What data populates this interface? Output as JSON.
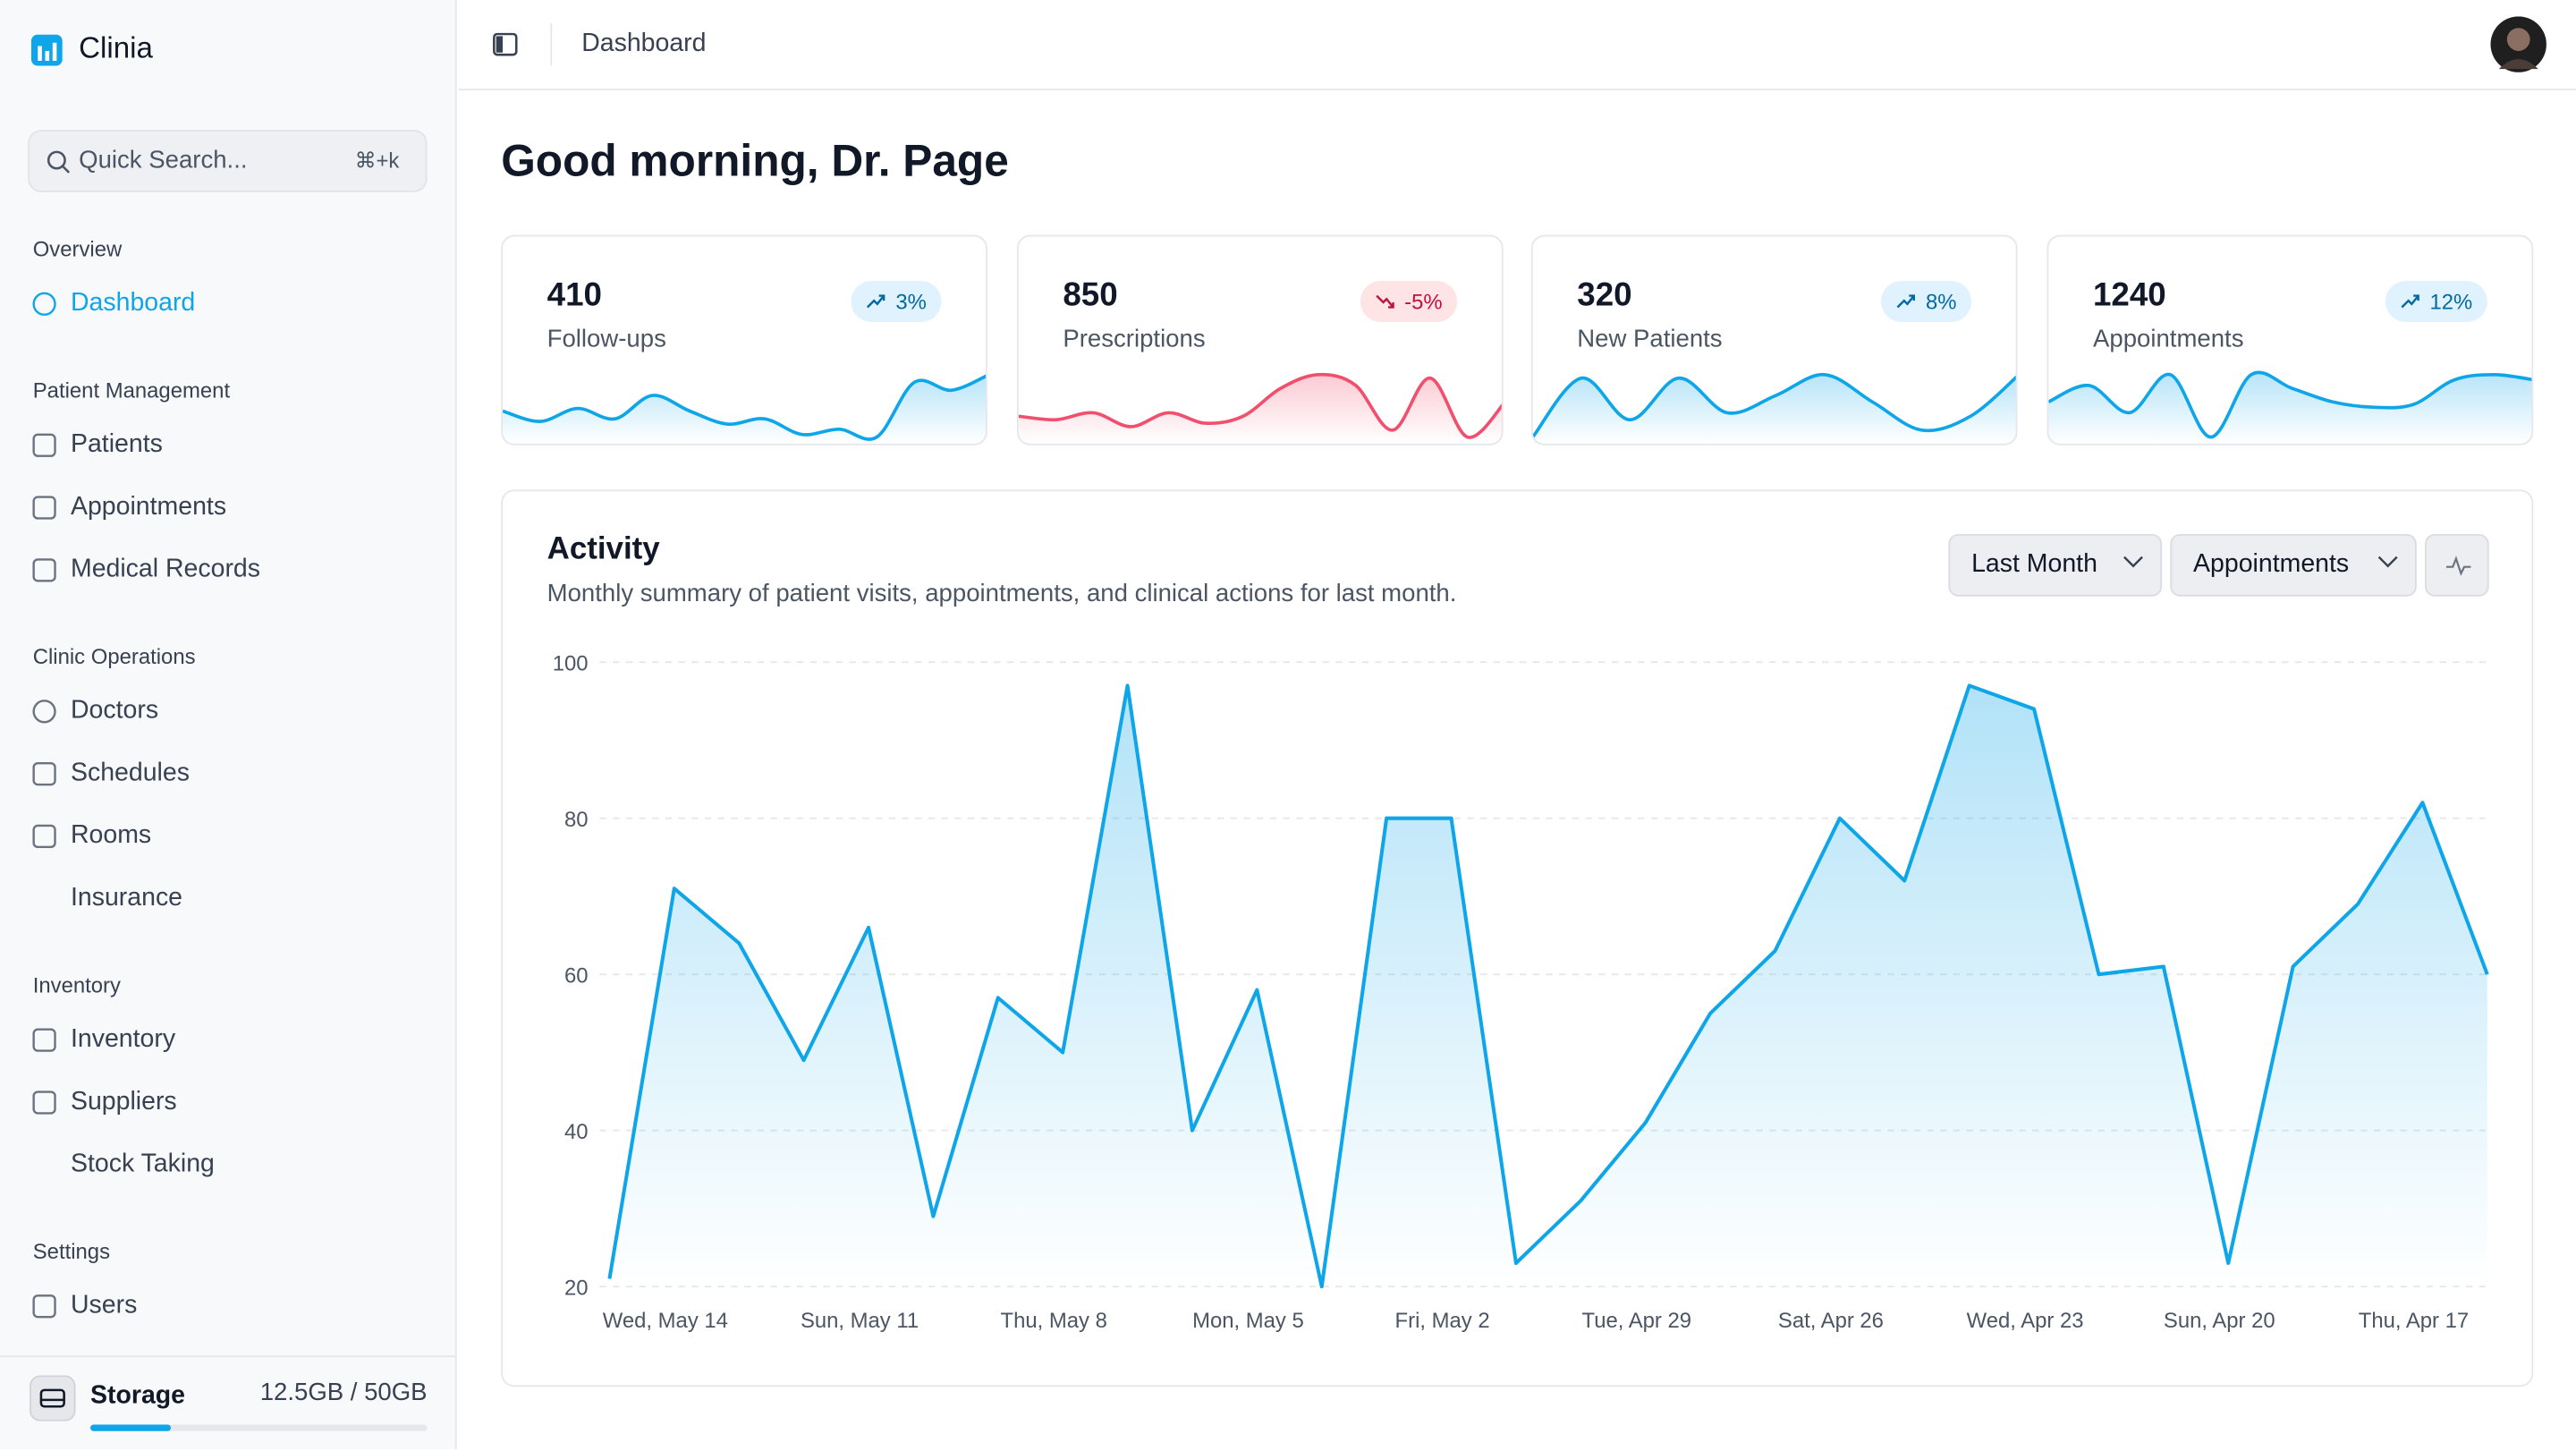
{
  "sidebar": {
    "brand": "Clinia",
    "search": {
      "placeholder": "Quick Search...",
      "shortcut": "⌘+k"
    },
    "sections": [
      {
        "title": "Overview",
        "items": [
          "Dashboard"
        ]
      },
      {
        "title": "Patient Management",
        "items": [
          "Patients",
          "Appointments",
          "Medical Records"
        ]
      },
      {
        "title": "Clinic Operations",
        "items": [
          "Doctors",
          "Schedules",
          "Rooms",
          "Insurance"
        ]
      },
      {
        "title": "Inventory",
        "items": [
          "Inventory",
          "Suppliers",
          "Stock Taking"
        ]
      },
      {
        "title": "Settings",
        "items": [
          "Users"
        ]
      }
    ],
    "storage": {
      "label": "Storage",
      "usage": "12.5GB / 50GB"
    }
  },
  "topbar": {
    "breadcrumb": "Dashboard"
  },
  "greeting": "Good morning, Dr. Page",
  "stats": [
    {
      "value": 410,
      "label": "Follow-ups",
      "change": "3%",
      "trend": "up",
      "color": "#0ea5e9",
      "sparkline": [
        30,
        22,
        32,
        24,
        42,
        30,
        20,
        24,
        12,
        16,
        10,
        52,
        46,
        58
      ]
    },
    {
      "value": 850,
      "label": "Prescriptions",
      "change": "-5%",
      "trend": "down",
      "color": "#f0506e",
      "sparkline": [
        22,
        20,
        24,
        16,
        24,
        18,
        22,
        38,
        46,
        40,
        14,
        44,
        10,
        30
      ]
    },
    {
      "value": 320,
      "label": "New Patients",
      "change": "8%",
      "trend": "up",
      "color": "#0ea5e9",
      "sparkline": [
        10,
        44,
        20,
        44,
        24,
        34,
        46,
        30,
        14,
        22,
        46
      ]
    },
    {
      "value": 1240,
      "label": "Appointments",
      "change": "12%",
      "trend": "up",
      "color": "#0ea5e9",
      "sparkline": [
        30,
        42,
        22,
        50,
        4,
        50,
        40,
        30,
        26,
        28,
        46,
        50,
        46
      ]
    }
  ],
  "activity": {
    "title": "Activity",
    "subtitle": "Monthly summary of patient visits, appointments, and clinical actions for last month.",
    "filters": [
      "Last Month",
      "Appointments"
    ]
  },
  "chart_data": {
    "type": "area",
    "categories": [
      "Wed, May 14",
      null,
      null,
      "Sun, May 11",
      null,
      null,
      "Thu, May 8",
      null,
      null,
      "Mon, May 5",
      null,
      null,
      "Fri, May 2",
      null,
      null,
      "Tue, Apr 29",
      null,
      null,
      "Sat, Apr 26",
      null,
      null,
      "Wed, Apr 23",
      null,
      null,
      "Sun, Apr 20",
      null,
      null,
      "Thu, Apr 17",
      null,
      null
    ],
    "values": [
      21,
      71,
      64,
      49,
      66,
      29,
      57,
      50,
      97,
      40,
      58,
      20,
      80,
      80,
      23,
      31,
      41,
      55,
      63,
      80,
      72,
      97,
      94,
      60,
      61,
      23,
      61,
      69,
      82,
      60
    ],
    "color": "#0ea5e9",
    "ylim": [
      20,
      100
    ],
    "yticks": [
      20,
      40,
      60,
      80,
      100
    ],
    "grid": true
  }
}
